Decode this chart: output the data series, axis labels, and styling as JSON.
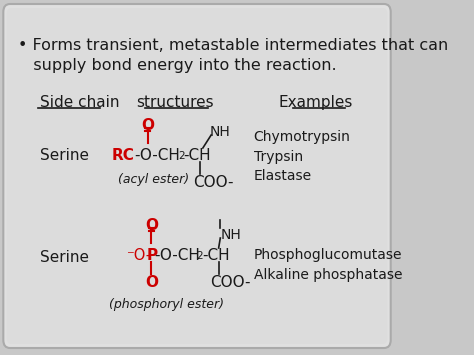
{
  "bg_color": "#c8c8c8",
  "card_color": "#d8d8d8",
  "title_bullet": "• Forms transient, metastable intermediates that can\n   supply bond energy into the reaction.",
  "col1_header": "Side chain",
  "col2_header": "structures",
  "col3_header": "Examples",
  "row1_side": "Serine",
  "row2_side": "Serine",
  "row1_label": "(acyl ester)",
  "row2_label": "(phosphoryl ester)",
  "examples1": "Chymotrypsin\nTrypsin\nElastase",
  "examples2": "Phosphoglucomutase\nAlkaline phosphatase",
  "text_color": "#1a1a1a",
  "red_color": "#cc0000",
  "font_size_bullet": 11.5,
  "font_size_header": 11,
  "font_size_body": 11
}
